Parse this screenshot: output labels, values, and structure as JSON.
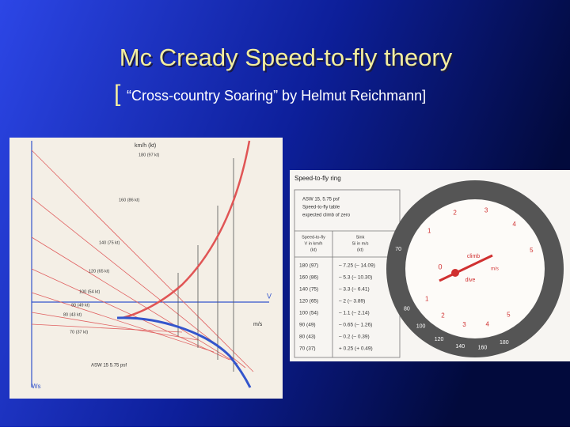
{
  "header": {
    "title": "Mc Cready Speed-to-fly theory",
    "bracket": "[",
    "subtitle": "“Cross-country Soaring” by Helmut Reichmann]"
  },
  "polar_figure": {
    "speed_axis": "km/h  (kt)",
    "speed_labels": [
      "180 (97 kt)",
      "160 (86 kt)",
      "140 (75 kt)",
      "120 (65 kt)",
      "100 (54 kt)",
      "90 (49 kt)",
      "80 (43 kt)",
      "70 (37 kt)"
    ],
    "v_axis": "V",
    "ws_axis": "Ws",
    "sink_unit": "m/s",
    "caption": "ASW 15  5.75 psf"
  },
  "ring_figure": {
    "title": "Speed-to-fly ring",
    "note": [
      "ASW 15, 5.75 psf",
      "Speed-to-fly table",
      "expected climb of zero"
    ],
    "headers": [
      [
        "Speed-to-fly",
        "V in km/h",
        "(kt)"
      ],
      [
        "Sink",
        "Si in m/s",
        "(kt)"
      ]
    ],
    "rows": [
      [
        "180 (97)",
        "– 7.25 (– 14.09)"
      ],
      [
        "160 (86)",
        "– 5.3 (– 10.30)"
      ],
      [
        "140 (75)",
        "– 3.3 (– 6.41)"
      ],
      [
        "120 (65)",
        "– 2 (– 3.89)"
      ],
      [
        "100 (54)",
        "– 1.1 (– 2.14)"
      ],
      [
        "90 (49)",
        "– 0.65 (– 1.26)"
      ],
      [
        "80 (43)",
        "– 0.2 (– 0.39)"
      ],
      [
        "70 (37)",
        "+ 0.25 (+ 0.49)"
      ]
    ],
    "dial": {
      "climb": "climb",
      "dive": "dive",
      "unit": "m/s",
      "climb_marks": [
        "1",
        "2",
        "3",
        "4",
        "5"
      ],
      "dive_marks": [
        "1",
        "2",
        "3",
        "4",
        "5"
      ],
      "zero": "0",
      "speeds": [
        "70",
        "80",
        "100",
        "120",
        "140",
        "160",
        "180"
      ]
    }
  }
}
